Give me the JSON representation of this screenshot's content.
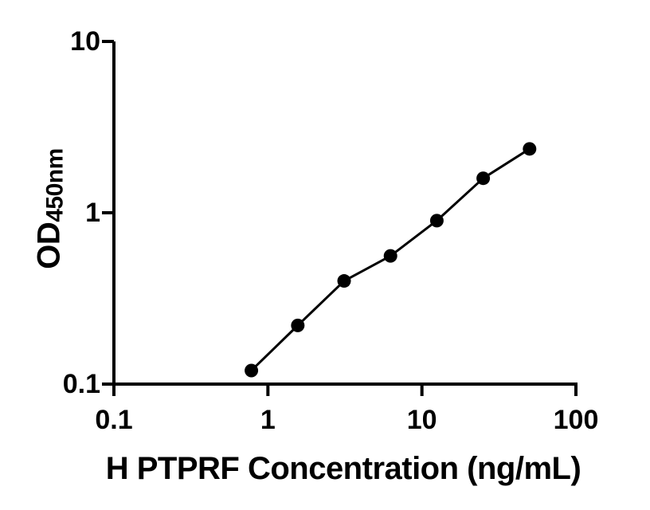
{
  "chart_data": {
    "type": "scatter",
    "line_through_points": true,
    "title": "",
    "xlabel": "H PTPRF Concentration (ng/mL)",
    "ylabel_main": "OD",
    "ylabel_sub": "450nm",
    "x_scale": "log",
    "y_scale": "log",
    "xlim": [
      0.1,
      100
    ],
    "ylim": [
      0.1,
      10
    ],
    "x_ticks": [
      0.1,
      1,
      10,
      100
    ],
    "x_tick_labels": [
      "0.1",
      "1",
      "10",
      "100"
    ],
    "y_ticks": [
      0.1,
      1,
      10
    ],
    "y_tick_labels": [
      "0.1",
      "1",
      "10"
    ],
    "grid": false,
    "legend_position": "none",
    "x": [
      0.781,
      1.563,
      3.125,
      6.25,
      12.5,
      25,
      50
    ],
    "y": [
      0.12,
      0.22,
      0.4,
      0.56,
      0.9,
      1.59,
      2.36
    ],
    "marker_color": "#000000",
    "line_color": "#000000",
    "axis_color": "#000000",
    "background_color": "#ffffff"
  }
}
